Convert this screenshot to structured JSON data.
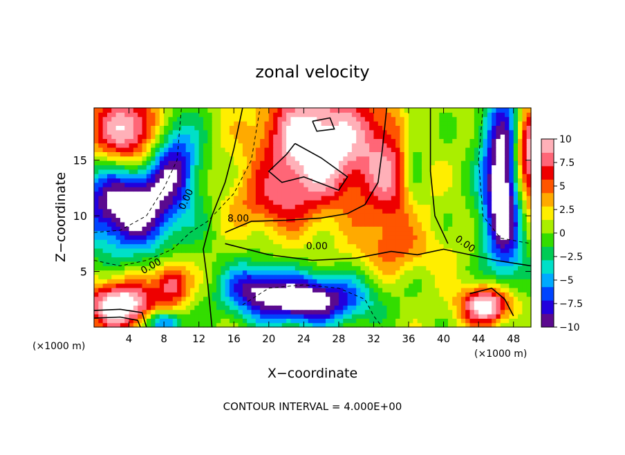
{
  "chart_data": {
    "type": "heatmap",
    "title": "zonal velocity",
    "xlabel": "X−coordinate",
    "ylabel": "Z−coordinate",
    "x_unit_left": "(×1000 m)",
    "x_unit_right": "(×1000 m)",
    "footer": "CONTOUR INTERVAL = 4.000E+00",
    "xlim": [
      0,
      50
    ],
    "ylim": [
      0,
      19.7
    ],
    "x_ticks": [
      4,
      8,
      12,
      16,
      20,
      24,
      28,
      32,
      36,
      40,
      44,
      48
    ],
    "y_ticks": [
      5,
      10,
      15
    ],
    "colorbar": {
      "min": -10,
      "max": 10,
      "ticks": [
        10,
        7.5,
        5,
        2.5,
        0,
        -2.5,
        -5,
        -7.5,
        -10
      ],
      "tick_labels": [
        "10",
        "7.5",
        "5",
        "2.5",
        "0",
        "−2.5",
        "−5",
        "−7.5",
        "−10"
      ],
      "colors": [
        "#5b0a8f",
        "#2200dd",
        "#0044ff",
        "#00aaff",
        "#00e0c8",
        "#00cc55",
        "#33dd00",
        "#aaee00",
        "#ffee00",
        "#ffaa00",
        "#ff5500",
        "#ee0000",
        "#ff6677",
        "#ffb0b8"
      ]
    },
    "contour_labels": [
      "0.00",
      "0.00",
      "8.00",
      "0.00",
      "0.00"
    ],
    "contour_interval": 4,
    "field_description_points": [
      {
        "x": 25,
        "y": 16,
        "value": 12
      },
      {
        "x": 21,
        "y": 11,
        "value": 7
      },
      {
        "x": 34,
        "y": 14,
        "value": 8
      },
      {
        "x": 37,
        "y": 8,
        "value": 1
      },
      {
        "x": 24,
        "y": 3,
        "value": -9
      },
      {
        "x": 8,
        "y": 17,
        "value": 1
      },
      {
        "x": 5,
        "y": 12,
        "value": -8
      },
      {
        "x": 46,
        "y": 15,
        "value": -8
      },
      {
        "x": 3,
        "y": 2,
        "value": 8
      },
      {
        "x": 45,
        "y": 2,
        "value": 8
      }
    ]
  }
}
